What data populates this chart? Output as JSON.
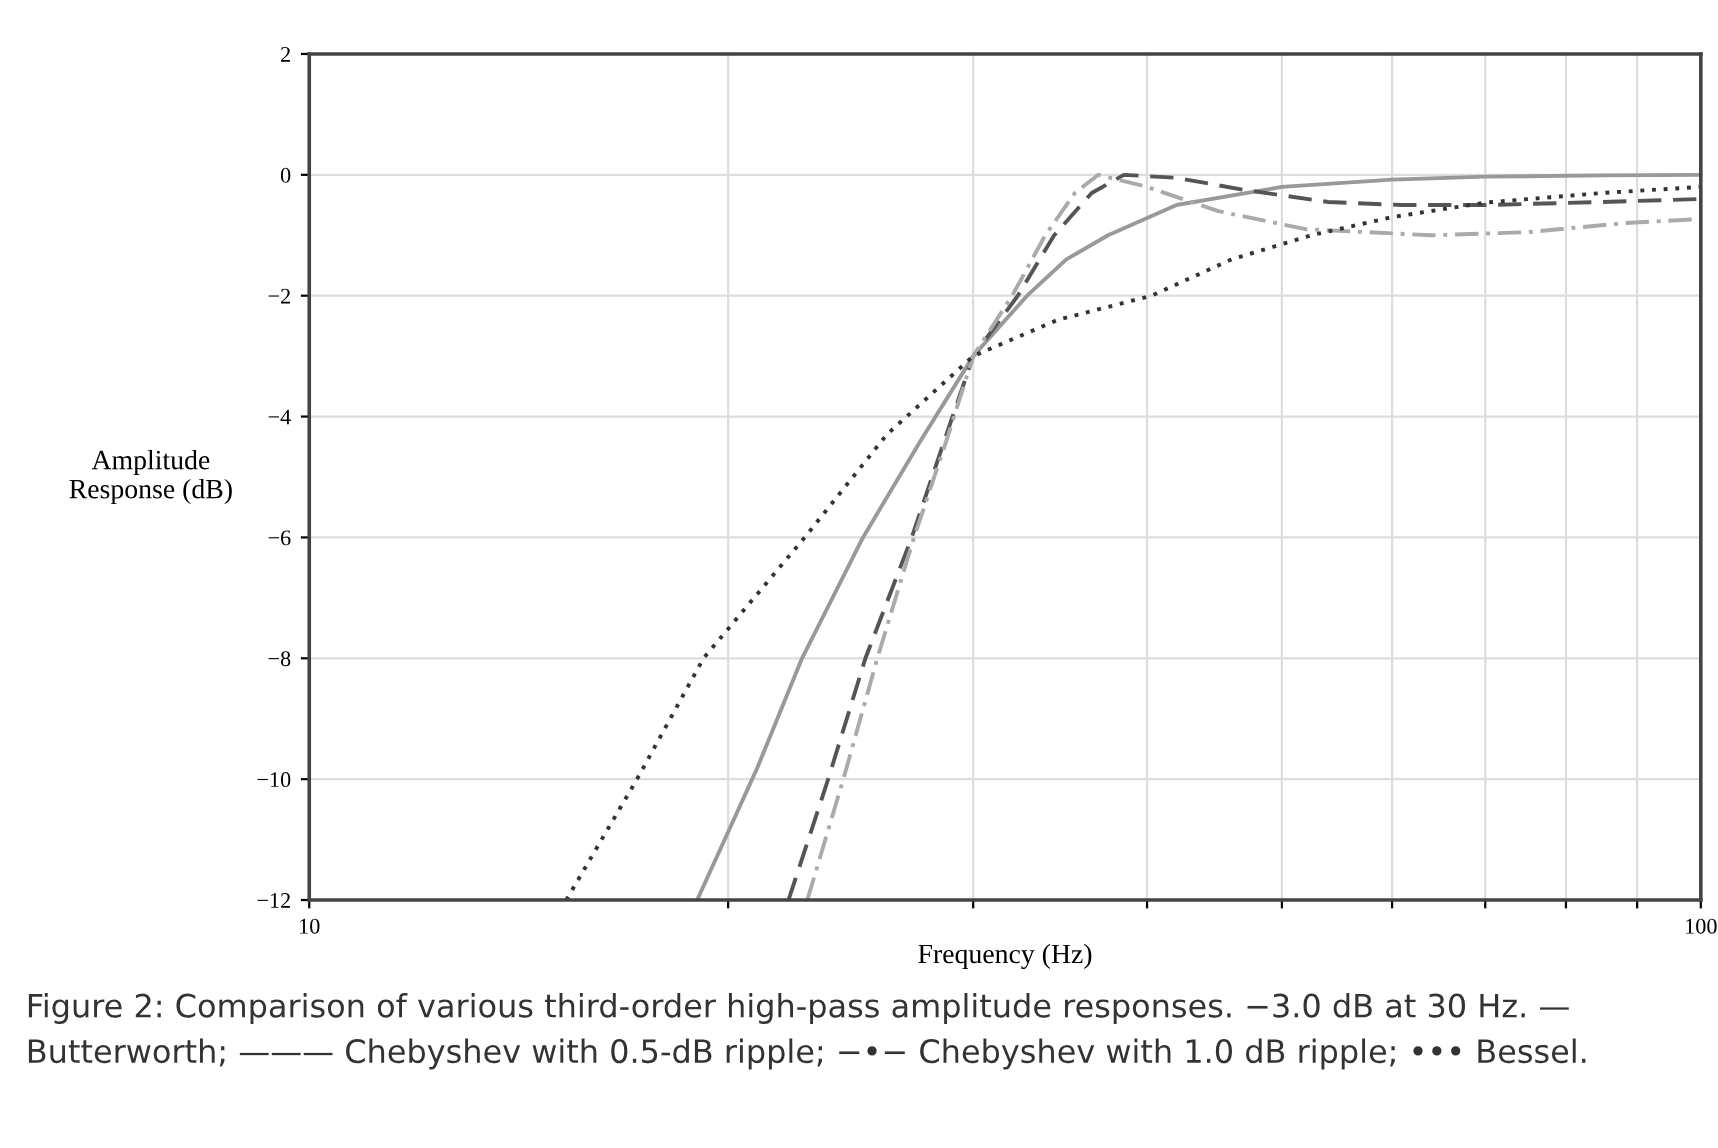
{
  "chart_data": {
    "type": "line",
    "xlabel": "Frequency (Hz)",
    "ylabel": "Amplitude\nResponse (dB)",
    "log": "x",
    "xlim": [
      10,
      100
    ],
    "xticks": [
      10,
      {
        "value": 20,
        "label": null
      },
      {
        "value": 30,
        "label": null
      },
      {
        "value": 40,
        "label": null
      },
      {
        "value": 50,
        "label": null
      },
      {
        "value": 60,
        "label": null
      },
      {
        "value": 70,
        "label": null
      },
      {
        "value": 80,
        "label": null
      },
      {
        "value": 90,
        "label": null
      },
      100
    ],
    "ylim": [
      -12,
      2
    ],
    "yticks": [
      {
        "value": -12,
        "label": "−12"
      },
      {
        "value": -10,
        "label": "−10"
      },
      {
        "value": -8,
        "label": "−8"
      },
      {
        "value": -6,
        "label": "−6"
      },
      {
        "value": -4,
        "label": "−4"
      },
      {
        "value": -2,
        "label": "−2"
      },
      0,
      2
    ],
    "grid": true,
    "marker": "none",
    "series": [
      {
        "color": "#999999",
        "line_style": "solid",
        "x": [
          19.0,
          21,
          22.6,
          25,
          27.5,
          30,
          32.8,
          35,
          37.5,
          42,
          50,
          60,
          70,
          85,
          100
        ],
        "values": [
          -12,
          -9.8,
          -8,
          -6,
          -4.4,
          -3,
          -2,
          -1.4,
          -1,
          -0.5,
          -0.2,
          -0.08,
          -0.03,
          -0.01,
          0
        ]
      },
      {
        "color": "#555555",
        "line_style": "dashed",
        "x": [
          22.1,
          23.6,
          25.1,
          27.1,
          28.6,
          30,
          32.3,
          34.3,
          36.5,
          38.5,
          42,
          47,
          54,
          61,
          70,
          85,
          100
        ],
        "values": [
          -12,
          -10,
          -8,
          -6,
          -4.4,
          -3,
          -2,
          -1,
          -0.3,
          0,
          -0.05,
          -0.25,
          -0.45,
          -0.5,
          -0.5,
          -0.45,
          -0.4
        ]
      },
      {
        "color": "#aaaaaa",
        "line_style": "dashdot",
        "x": [
          22.8,
          24.2,
          25.6,
          27.2,
          28.7,
          30,
          32,
          33.8,
          35.5,
          36.9,
          40,
          45,
          52,
          64,
          75,
          88,
          100
        ],
        "values": [
          -12,
          -10,
          -8,
          -6,
          -4.4,
          -3,
          -2,
          -1,
          -0.3,
          0,
          -0.2,
          -0.6,
          -0.9,
          -1.0,
          -0.95,
          -0.8,
          -0.73
        ]
      },
      {
        "color": "#333333",
        "line_style": "dotted",
        "x": [
          15.3,
          17.2,
          19.2,
          22.7,
          26,
          30,
          34.5,
          40.3,
          46,
          52.5,
          60,
          70,
          85,
          100
        ],
        "values": [
          -12,
          -10,
          -8,
          -6,
          -4.3,
          -3,
          -2.4,
          -2,
          -1.4,
          -1,
          -0.7,
          -0.46,
          -0.3,
          -0.2
        ]
      }
    ],
    "annotations": [
      "Figure 2: Comparison of various third-order high-pass amplitude responses. −3.0 dB at 30 Hz. — Butterworth; ——— Chebyshev with 0.5-dB ripple; −•− Chebyshev with 1.0 dB ripple; ••• Bessel."
    ]
  }
}
